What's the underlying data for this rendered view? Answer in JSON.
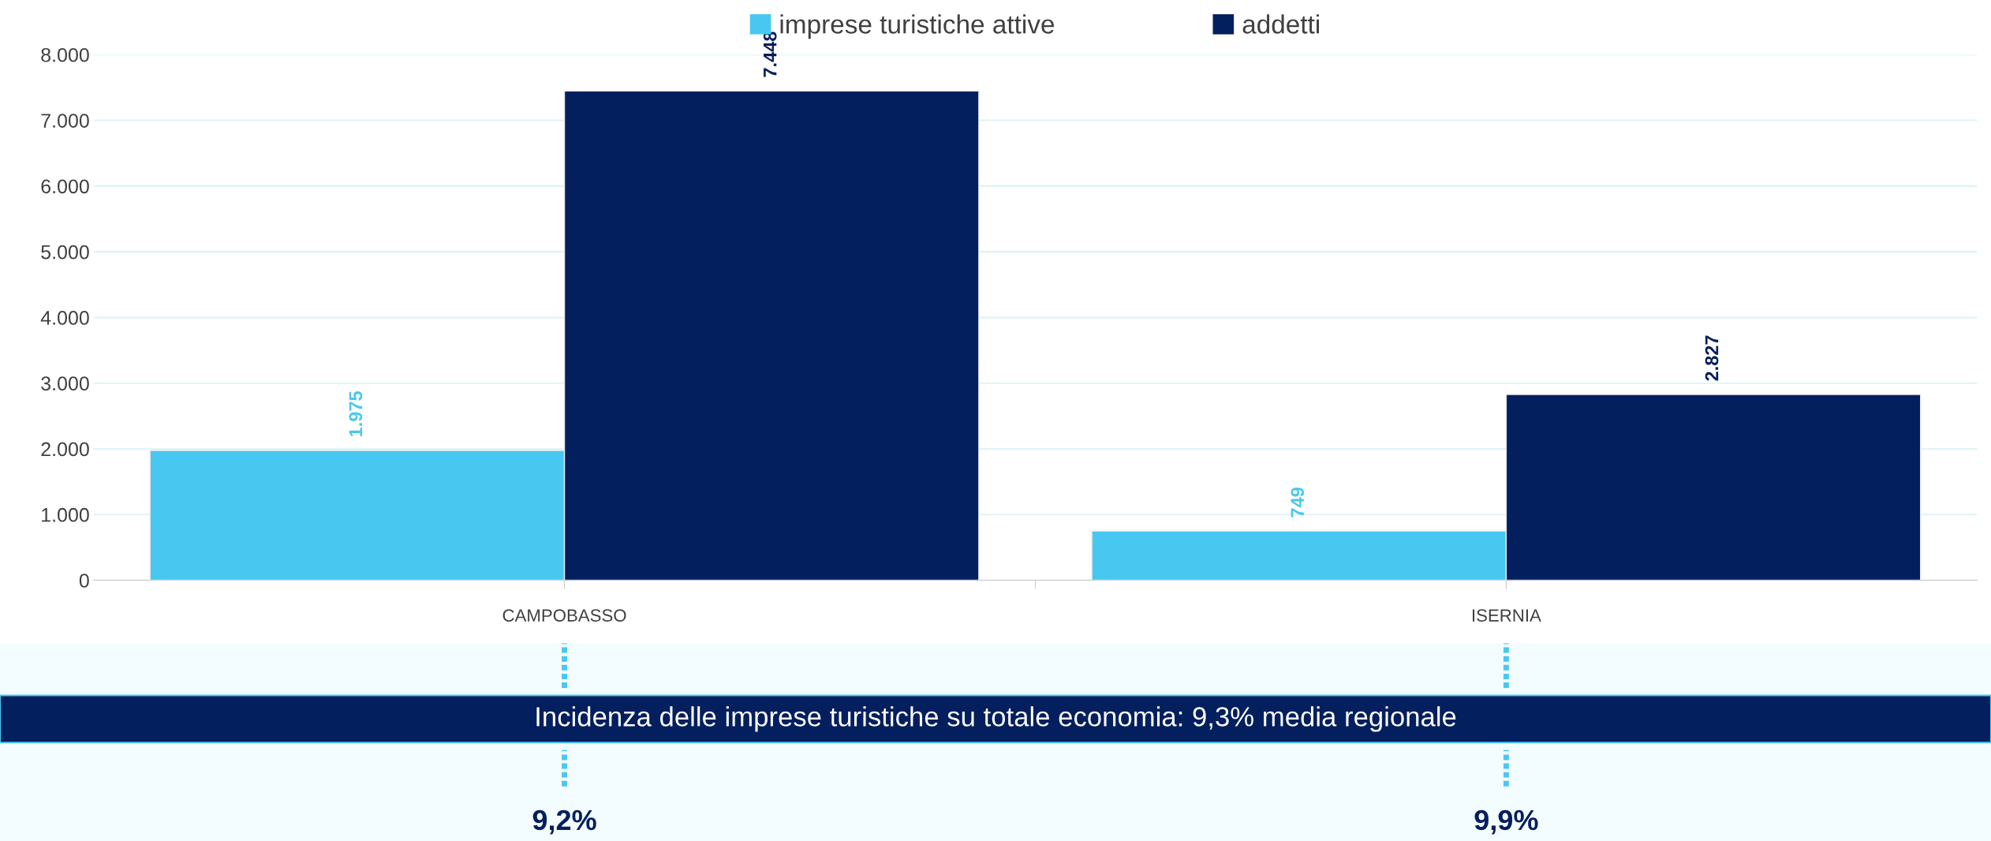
{
  "chart_data": {
    "type": "bar",
    "categories": [
      "CAMPOBASSO",
      "ISERNIA"
    ],
    "series": [
      {
        "name": "imprese turistiche attive",
        "color": "#48c8f0",
        "values": [
          1975,
          749
        ],
        "value_labels": [
          "1.975",
          "749"
        ]
      },
      {
        "name": "addetti",
        "color": "#041f5e",
        "values": [
          7448,
          2827
        ],
        "value_labels": [
          "7.448",
          "2.827"
        ]
      }
    ],
    "ylim": [
      0,
      8000
    ],
    "yticks": [
      {
        "value": 0,
        "label": "0"
      },
      {
        "value": 1000,
        "label": "1.000"
      },
      {
        "value": 2000,
        "label": "2.000"
      },
      {
        "value": 3000,
        "label": "3.000"
      },
      {
        "value": 4000,
        "label": "4.000"
      },
      {
        "value": 5000,
        "label": "5.000"
      },
      {
        "value": 6000,
        "label": "6.000"
      },
      {
        "value": 7000,
        "label": "7.000"
      },
      {
        "value": 8000,
        "label": "8.000"
      }
    ],
    "grid": "y",
    "legend": "top",
    "annotations": [
      "Incidenza delle imprese turistiche su totale economia: 9,3% media regionale",
      "9,2%",
      "9,9%"
    ]
  }
}
